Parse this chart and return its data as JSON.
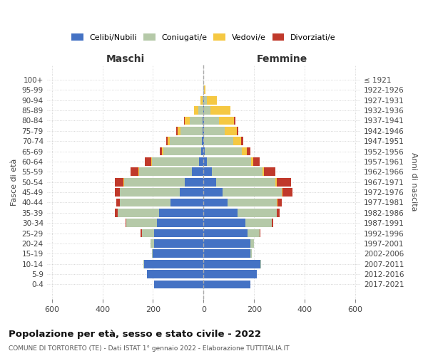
{
  "age_groups": [
    "0-4",
    "5-9",
    "10-14",
    "15-19",
    "20-24",
    "25-29",
    "30-34",
    "35-39",
    "40-44",
    "45-49",
    "50-54",
    "55-59",
    "60-64",
    "65-69",
    "70-74",
    "75-79",
    "80-84",
    "85-89",
    "90-94",
    "95-99",
    "100+"
  ],
  "birth_years": [
    "2017-2021",
    "2012-2016",
    "2007-2011",
    "2002-2006",
    "1997-2001",
    "1992-1996",
    "1987-1991",
    "1982-1986",
    "1977-1981",
    "1972-1976",
    "1967-1971",
    "1962-1966",
    "1957-1961",
    "1952-1956",
    "1947-1951",
    "1942-1946",
    "1937-1941",
    "1932-1936",
    "1927-1931",
    "1922-1926",
    "≤ 1921"
  ],
  "maschi": {
    "celibi": [
      195,
      225,
      235,
      200,
      195,
      195,
      185,
      175,
      130,
      95,
      75,
      45,
      18,
      10,
      8,
      5,
      3,
      2,
      0,
      0,
      0
    ],
    "coniugati": [
      0,
      0,
      2,
      5,
      15,
      50,
      120,
      165,
      200,
      235,
      240,
      210,
      185,
      150,
      125,
      85,
      52,
      18,
      5,
      0,
      0
    ],
    "vedovi": [
      0,
      0,
      0,
      0,
      0,
      0,
      0,
      0,
      0,
      2,
      2,
      3,
      5,
      5,
      10,
      12,
      18,
      18,
      8,
      2,
      0
    ],
    "divorziati": [
      0,
      0,
      0,
      0,
      0,
      3,
      5,
      10,
      15,
      20,
      35,
      30,
      25,
      8,
      5,
      5,
      5,
      0,
      0,
      0,
      0
    ]
  },
  "femmine": {
    "nubili": [
      185,
      210,
      225,
      185,
      185,
      175,
      165,
      135,
      95,
      75,
      50,
      32,
      12,
      5,
      3,
      3,
      3,
      2,
      2,
      0,
      0
    ],
    "coniugate": [
      0,
      0,
      2,
      5,
      15,
      48,
      105,
      155,
      195,
      235,
      235,
      200,
      175,
      145,
      115,
      80,
      58,
      25,
      10,
      3,
      0
    ],
    "vedove": [
      0,
      0,
      0,
      0,
      0,
      0,
      0,
      0,
      2,
      3,
      5,
      8,
      10,
      20,
      30,
      50,
      60,
      80,
      40,
      5,
      0
    ],
    "divorziate": [
      0,
      0,
      0,
      0,
      0,
      2,
      5,
      10,
      18,
      40,
      55,
      45,
      25,
      15,
      10,
      5,
      5,
      0,
      0,
      0,
      0
    ]
  },
  "colors": {
    "celibi": "#4472C4",
    "coniugati": "#B5C9A8",
    "vedovi": "#F5C842",
    "divorziati": "#C0392B"
  },
  "xlim": 620,
  "title": "Popolazione per età, sesso e stato civile - 2022",
  "subtitle": "COMUNE DI TORTORETO (TE) - Dati ISTAT 1° gennaio 2022 - Elaborazione TUTTITALIA.IT",
  "xlabel_left": "Maschi",
  "xlabel_right": "Femmine",
  "ylabel_left": "Fasce di età",
  "ylabel_right": "Anni di nascita",
  "bg_color": "#ffffff",
  "grid_color": "#cccccc"
}
